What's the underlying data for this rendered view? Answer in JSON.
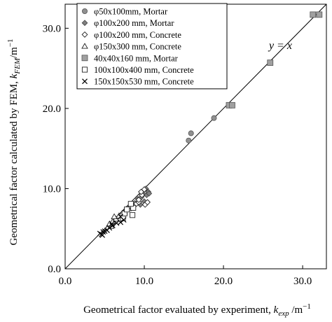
{
  "chart_data": {
    "type": "scatter",
    "xlabel": {
      "text": "Geometrical factor evaluated by experiment, ",
      "k": "k",
      "sub": "exp",
      "unit": " /m",
      "sup": "−1"
    },
    "ylabel": {
      "text": "Geometrical factor calculated by FEM, ",
      "k": "k",
      "sub": "FEM",
      "unit": "/m",
      "sup": "−1"
    },
    "xlim": [
      0,
      33
    ],
    "ylim": [
      0,
      33
    ],
    "xticks": [
      0,
      10,
      20,
      30
    ],
    "yticks": [
      0,
      10,
      20,
      30
    ],
    "xtick_labels": [
      "0.0",
      "10.0",
      "20.0",
      "30.0"
    ],
    "ytick_labels": [
      "0.0",
      "10.0",
      "20.0",
      "30.0"
    ],
    "grid": false,
    "legend_position": "top-left",
    "identity_line": {
      "label": "y = x"
    },
    "series": [
      {
        "name": "φ50x100mm, Mortar",
        "marker": "circle-gray",
        "points": [
          [
            15.6,
            16.0
          ],
          [
            15.9,
            16.9
          ],
          [
            18.8,
            18.8
          ]
        ]
      },
      {
        "name": "φ100x200 mm, Mortar",
        "marker": "diamond-gray",
        "points": [
          [
            8.8,
            8.2
          ],
          [
            9.2,
            8.7
          ],
          [
            9.6,
            8.9
          ],
          [
            9.9,
            9.3
          ],
          [
            10.3,
            9.2
          ],
          [
            10.5,
            9.6
          ],
          [
            10.2,
            10.0
          ],
          [
            10.6,
            9.4
          ],
          [
            9.5,
            8.0
          ],
          [
            10.0,
            8.4
          ]
        ]
      },
      {
        "name": "φ100x200 mm, Concrete",
        "marker": "diamond-open",
        "points": [
          [
            8.5,
            7.9
          ],
          [
            9.0,
            8.1
          ],
          [
            9.3,
            8.3
          ],
          [
            9.7,
            9.2
          ],
          [
            10.1,
            8.0
          ],
          [
            10.4,
            8.3
          ],
          [
            9.6,
            9.6
          ],
          [
            10.0,
            9.9
          ],
          [
            9.3,
            8.6
          ]
        ]
      },
      {
        "name": "φ150x300 mm, Concrete",
        "marker": "triangle-open",
        "points": [
          [
            5.6,
            5.6
          ],
          [
            6.0,
            5.9
          ],
          [
            6.4,
            6.2
          ],
          [
            6.8,
            6.6
          ],
          [
            7.2,
            6.9
          ],
          [
            7.5,
            7.1
          ],
          [
            8.0,
            7.5
          ],
          [
            6.2,
            6.5
          ],
          [
            5.8,
            5.3
          ]
        ]
      },
      {
        "name": "40x40x160 mm, Mortar",
        "marker": "square-gray",
        "points": [
          [
            20.7,
            20.4
          ],
          [
            21.1,
            20.4
          ],
          [
            25.9,
            25.7
          ],
          [
            31.3,
            31.7
          ],
          [
            32.1,
            31.7
          ]
        ]
      },
      {
        "name": "100x100x400 mm, Concrete",
        "marker": "square-open",
        "points": [
          [
            7.3,
            6.3
          ],
          [
            7.5,
            6.9
          ],
          [
            8.5,
            6.7
          ],
          [
            8.6,
            7.6
          ],
          [
            8.3,
            8.1
          ],
          [
            7.8,
            7.4
          ]
        ]
      },
      {
        "name": "150x150x530 mm, Concrete",
        "marker": "cross",
        "points": [
          [
            4.4,
            4.4
          ],
          [
            4.6,
            4.3
          ],
          [
            4.8,
            4.6
          ],
          [
            5.0,
            4.7
          ],
          [
            5.3,
            4.8
          ],
          [
            5.6,
            5.1
          ],
          [
            6.0,
            5.4
          ],
          [
            6.5,
            5.7
          ],
          [
            7.0,
            5.8
          ],
          [
            7.4,
            6.1
          ],
          [
            7.0,
            6.5
          ],
          [
            4.7,
            4.2
          ],
          [
            5.9,
            5.6
          ]
        ]
      }
    ]
  }
}
